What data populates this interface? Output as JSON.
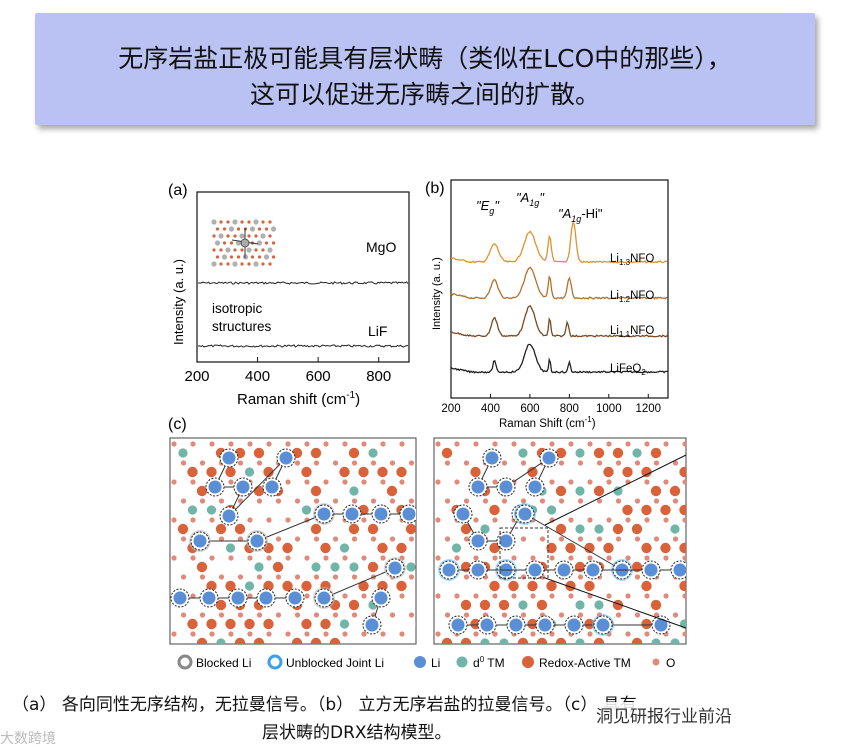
{
  "banner": {
    "line1": "无序岩盐正极可能具有层状畴（类似在LCO中的那些），",
    "line2": "这可以促进无序畴之间的扩散。"
  },
  "panel_a": {
    "label": "(a)",
    "ylabel": "Intensity (a. u.)",
    "xlabel": "Raman shift (cm",
    "xlabel_sup": "-1",
    "xlabel_end": ")",
    "xticks": [
      "200",
      "400",
      "600",
      "800"
    ],
    "trace_labels": [
      "MgO",
      "LiF"
    ],
    "annotation_line1": "isotropic",
    "annotation_line2": "structures"
  },
  "panel_b": {
    "label": "(b)",
    "ylabel": "Intensity (a. u.)",
    "xlabel": "Raman Shift (cm",
    "xlabel_sup": "-1",
    "xlabel_end": ")",
    "xticks": [
      "200",
      "400",
      "600",
      "800",
      "1000",
      "1200"
    ],
    "peak_eg": "\"E",
    "peak_eg_sub": "g",
    "peak_a1g": "\"A",
    "peak_a1g_sub": "1g",
    "peak_a1g_hi": "\"A",
    "peak_a1g_hi_sub": "1g",
    "peak_a1g_hi_end": "-Hi\"",
    "quote": "\"",
    "traces": [
      {
        "pre": "Li",
        "sub": "1.3",
        "post": "NFO",
        "color": "#e0922e"
      },
      {
        "pre": "Li",
        "sub": "1.2",
        "post": "NFO",
        "color": "#b5712b"
      },
      {
        "pre": "Li",
        "sub": "1.1",
        "post": "NFO",
        "color": "#7a4a1e"
      },
      {
        "pre": "LiFeO",
        "sub": "2",
        "post": "",
        "color": "#222222"
      }
    ]
  },
  "panel_c": {
    "label": "(c)",
    "legend": {
      "blocked": "Blocked Li",
      "unblocked": "Unblocked Joint Li",
      "li": "Li",
      "d0": "d",
      "d0_sup": "0",
      "d0_end": " TM",
      "redox": "Redox-Active TM",
      "o": "O"
    }
  },
  "caption": {
    "line1": "（a） 各向同性无序结构，无拉曼信号。（b） 立方无序岩盐的拉曼信号。（c） 具有",
    "line2": "层状畴的DRX结构模型。"
  },
  "watermark": {
    "left": "大数跨境",
    "right": "洞见研报行业前沿"
  },
  "colors": {
    "li": "#5a8fd6",
    "d0": "#6fb5a8",
    "redox": "#d9623a",
    "o": "#e08a7a",
    "banner": "#b9c2f2"
  }
}
